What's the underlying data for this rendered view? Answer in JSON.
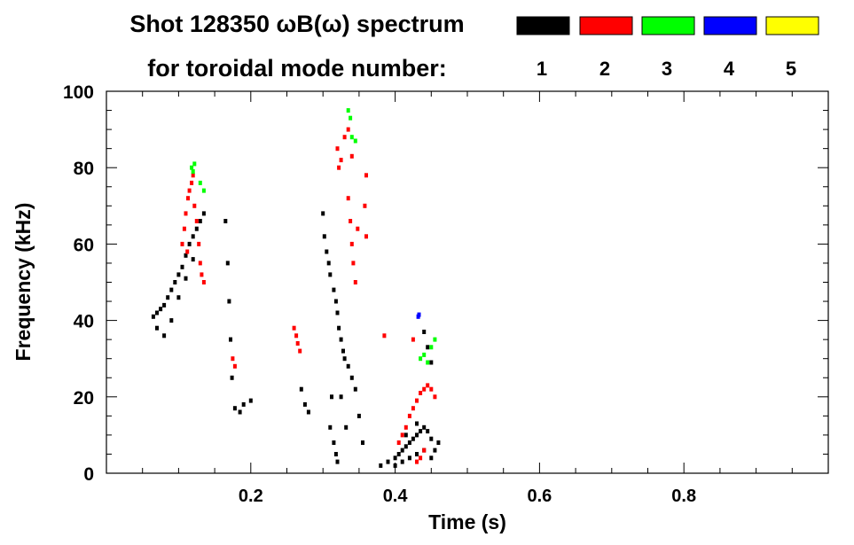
{
  "chart_data": {
    "type": "heatmap",
    "title": "Shot 128350 ωB(ω) spectrum",
    "subtitle": "for toroidal mode number:",
    "xlabel": "Time (s)",
    "ylabel": "Frequency (kHz)",
    "xlim": [
      0.0,
      1.0
    ],
    "ylim": [
      0,
      100
    ],
    "x_ticks": [
      0.2,
      0.4,
      0.6,
      0.8
    ],
    "x_tick_labels": [
      "0.2",
      "0.4",
      "0.6",
      "0.8"
    ],
    "y_ticks": [
      0,
      20,
      40,
      60,
      80,
      100
    ],
    "y_tick_labels": [
      "0",
      "20",
      "40",
      "60",
      "80",
      "100"
    ],
    "legend_position": "top-right",
    "grid": false,
    "legend": [
      {
        "label": "1",
        "color": "#000000"
      },
      {
        "label": "2",
        "color": "#ff0000"
      },
      {
        "label": "3",
        "color": "#00ff00"
      },
      {
        "label": "4",
        "color": "#0000ff"
      },
      {
        "label": "5",
        "color": "#ffff00"
      }
    ],
    "series": [
      {
        "mode": "1",
        "color": "#000000",
        "points": [
          [
            0.065,
            41
          ],
          [
            0.07,
            42
          ],
          [
            0.075,
            43
          ],
          [
            0.08,
            44
          ],
          [
            0.085,
            46
          ],
          [
            0.09,
            48
          ],
          [
            0.095,
            50
          ],
          [
            0.1,
            52
          ],
          [
            0.105,
            54
          ],
          [
            0.11,
            57
          ],
          [
            0.115,
            60
          ],
          [
            0.12,
            62
          ],
          [
            0.125,
            64
          ],
          [
            0.13,
            66
          ],
          [
            0.135,
            68
          ],
          [
            0.07,
            38
          ],
          [
            0.08,
            36
          ],
          [
            0.09,
            40
          ],
          [
            0.1,
            46
          ],
          [
            0.11,
            51
          ],
          [
            0.12,
            56
          ],
          [
            0.165,
            66
          ],
          [
            0.168,
            55
          ],
          [
            0.17,
            45
          ],
          [
            0.172,
            35
          ],
          [
            0.174,
            25
          ],
          [
            0.178,
            17
          ],
          [
            0.185,
            16
          ],
          [
            0.19,
            18
          ],
          [
            0.2,
            19
          ],
          [
            0.27,
            22
          ],
          [
            0.275,
            18
          ],
          [
            0.28,
            16
          ],
          [
            0.3,
            68
          ],
          [
            0.302,
            62
          ],
          [
            0.305,
            58
          ],
          [
            0.308,
            55
          ],
          [
            0.31,
            52
          ],
          [
            0.315,
            48
          ],
          [
            0.318,
            45
          ],
          [
            0.32,
            42
          ],
          [
            0.322,
            38
          ],
          [
            0.325,
            35
          ],
          [
            0.328,
            32
          ],
          [
            0.33,
            30
          ],
          [
            0.335,
            28
          ],
          [
            0.34,
            25
          ],
          [
            0.31,
            12
          ],
          [
            0.315,
            8
          ],
          [
            0.318,
            5
          ],
          [
            0.32,
            3
          ],
          [
            0.312,
            20
          ],
          [
            0.325,
            20
          ],
          [
            0.332,
            12
          ],
          [
            0.345,
            22
          ],
          [
            0.35,
            15
          ],
          [
            0.355,
            8
          ],
          [
            0.38,
            2
          ],
          [
            0.39,
            3
          ],
          [
            0.4,
            4
          ],
          [
            0.405,
            5
          ],
          [
            0.41,
            6
          ],
          [
            0.415,
            7
          ],
          [
            0.42,
            8
          ],
          [
            0.425,
            9
          ],
          [
            0.43,
            10
          ],
          [
            0.435,
            11
          ],
          [
            0.44,
            12
          ],
          [
            0.445,
            11
          ],
          [
            0.45,
            9
          ],
          [
            0.455,
            6
          ],
          [
            0.46,
            8
          ],
          [
            0.41,
            3
          ],
          [
            0.42,
            4
          ],
          [
            0.43,
            5
          ],
          [
            0.44,
            6
          ],
          [
            0.45,
            4
          ],
          [
            0.4,
            2
          ],
          [
            0.415,
            10
          ],
          [
            0.43,
            13
          ],
          [
            0.44,
            37
          ],
          [
            0.445,
            33
          ],
          [
            0.45,
            29
          ]
        ]
      },
      {
        "mode": "2",
        "color": "#ff0000",
        "points": [
          [
            0.105,
            60
          ],
          [
            0.108,
            64
          ],
          [
            0.11,
            68
          ],
          [
            0.113,
            72
          ],
          [
            0.115,
            74
          ],
          [
            0.118,
            76
          ],
          [
            0.12,
            78
          ],
          [
            0.122,
            70
          ],
          [
            0.125,
            66
          ],
          [
            0.128,
            60
          ],
          [
            0.13,
            55
          ],
          [
            0.132,
            52
          ],
          [
            0.135,
            50
          ],
          [
            0.112,
            58
          ],
          [
            0.175,
            30
          ],
          [
            0.178,
            28
          ],
          [
            0.26,
            38
          ],
          [
            0.263,
            36
          ],
          [
            0.265,
            34
          ],
          [
            0.268,
            32
          ],
          [
            0.32,
            85
          ],
          [
            0.322,
            80
          ],
          [
            0.325,
            82
          ],
          [
            0.33,
            88
          ],
          [
            0.335,
            90
          ],
          [
            0.34,
            83
          ],
          [
            0.335,
            72
          ],
          [
            0.338,
            66
          ],
          [
            0.34,
            60
          ],
          [
            0.342,
            55
          ],
          [
            0.345,
            50
          ],
          [
            0.348,
            64
          ],
          [
            0.36,
            78
          ],
          [
            0.36,
            62
          ],
          [
            0.358,
            70
          ],
          [
            0.405,
            8
          ],
          [
            0.41,
            10
          ],
          [
            0.415,
            12
          ],
          [
            0.42,
            15
          ],
          [
            0.425,
            17
          ],
          [
            0.43,
            19
          ],
          [
            0.435,
            21
          ],
          [
            0.44,
            22
          ],
          [
            0.445,
            23
          ],
          [
            0.45,
            22
          ],
          [
            0.455,
            20
          ],
          [
            0.435,
            4
          ],
          [
            0.44,
            6
          ],
          [
            0.43,
            3
          ],
          [
            0.385,
            36
          ],
          [
            0.425,
            35
          ]
        ]
      },
      {
        "mode": "3",
        "color": "#00ff00",
        "points": [
          [
            0.118,
            80
          ],
          [
            0.12,
            79
          ],
          [
            0.122,
            81
          ],
          [
            0.13,
            76
          ],
          [
            0.135,
            74
          ],
          [
            0.335,
            95
          ],
          [
            0.338,
            93
          ],
          [
            0.34,
            88
          ],
          [
            0.345,
            87
          ],
          [
            0.435,
            30
          ],
          [
            0.44,
            31
          ],
          [
            0.445,
            29
          ],
          [
            0.45,
            33
          ],
          [
            0.455,
            35
          ]
        ]
      },
      {
        "mode": "4",
        "color": "#0000ff",
        "points": [
          [
            0.432,
            41
          ],
          [
            0.433,
            41.5
          ]
        ]
      },
      {
        "mode": "5",
        "color": "#ffff00",
        "points": []
      }
    ]
  }
}
